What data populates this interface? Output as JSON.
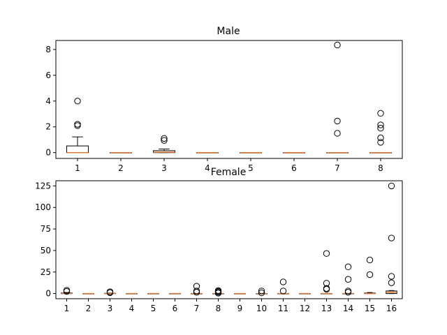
{
  "chart_data": [
    {
      "type": "boxplot",
      "title": "Male",
      "categories": [
        "1",
        "2",
        "3",
        "4",
        "5",
        "6",
        "7",
        "8"
      ],
      "yticks": [
        "0",
        "2",
        "4",
        "6",
        "8"
      ],
      "ylim": [
        -0.45,
        8.7
      ],
      "boxes": [
        {
          "q1": 0,
          "median": 0,
          "q3": 0.52,
          "whislo": 0,
          "whishi": 1.22,
          "fliers": [
            2.1,
            2.2,
            4.0
          ]
        },
        {
          "q1": 0,
          "median": 0,
          "q3": 0,
          "whislo": 0,
          "whishi": 0,
          "fliers": []
        },
        {
          "q1": 0,
          "median": 0.03,
          "q3": 0.15,
          "whislo": 0,
          "whishi": 0.28,
          "fliers": [
            0.95,
            1.1
          ]
        },
        {
          "q1": 0,
          "median": 0,
          "q3": 0,
          "whislo": 0,
          "whishi": 0,
          "fliers": []
        },
        {
          "q1": 0,
          "median": 0,
          "q3": 0,
          "whislo": 0,
          "whishi": 0,
          "fliers": []
        },
        {
          "q1": 0,
          "median": 0,
          "q3": 0,
          "whislo": 0,
          "whishi": 0,
          "fliers": []
        },
        {
          "q1": 0,
          "median": 0,
          "q3": 0,
          "whislo": 0,
          "whishi": 0,
          "fliers": [
            1.5,
            2.45,
            8.35
          ]
        },
        {
          "q1": 0,
          "median": 0,
          "q3": 0,
          "whislo": 0,
          "whishi": 0,
          "fliers": [
            0.8,
            1.15,
            1.9,
            2.15,
            3.05
          ]
        }
      ]
    },
    {
      "type": "boxplot",
      "title": "Female",
      "categories": [
        "1",
        "2",
        "3",
        "4",
        "5",
        "6",
        "7",
        "8",
        "9",
        "10",
        "11",
        "12",
        "13",
        "14",
        "15",
        "16"
      ],
      "yticks": [
        "0",
        "25",
        "50",
        "75",
        "100",
        "125"
      ],
      "ylim": [
        -6,
        131
      ],
      "boxes": [
        {
          "q1": 0,
          "median": 0,
          "q3": 0.6,
          "whislo": 0,
          "whishi": 1.2,
          "fliers": [
            2.5,
            3.8
          ]
        },
        {
          "q1": 0,
          "median": 0,
          "q3": 0,
          "whislo": 0,
          "whishi": 0,
          "fliers": []
        },
        {
          "q1": 0,
          "median": 0,
          "q3": 0.3,
          "whislo": 0,
          "whishi": 0.6,
          "fliers": [
            1.0,
            2.0
          ]
        },
        {
          "q1": 0,
          "median": 0,
          "q3": 0,
          "whislo": 0,
          "whishi": 0,
          "fliers": []
        },
        {
          "q1": 0,
          "median": 0,
          "q3": 0,
          "whislo": 0,
          "whishi": 0,
          "fliers": []
        },
        {
          "q1": 0,
          "median": 0,
          "q3": 0,
          "whislo": 0,
          "whishi": 0,
          "fliers": []
        },
        {
          "q1": 0,
          "median": 0,
          "q3": 0,
          "whislo": 0,
          "whishi": 0,
          "fliers": [
            1.5,
            3.0,
            8.5
          ]
        },
        {
          "q1": 0,
          "median": 0,
          "q3": 0,
          "whislo": 0,
          "whishi": 0,
          "fliers": [
            0.5,
            1.5,
            2.5,
            3.5
          ]
        },
        {
          "q1": 0,
          "median": 0,
          "q3": 0,
          "whislo": 0,
          "whishi": 0,
          "fliers": []
        },
        {
          "q1": 0,
          "median": 0,
          "q3": 0,
          "whislo": 0,
          "whishi": 0,
          "fliers": [
            0.8,
            3.0
          ]
        },
        {
          "q1": 0,
          "median": 0,
          "q3": 0,
          "whislo": 0,
          "whishi": 0,
          "fliers": [
            3.0,
            13.5
          ]
        },
        {
          "q1": 0,
          "median": 0,
          "q3": 0,
          "whislo": 0,
          "whishi": 0,
          "fliers": []
        },
        {
          "q1": 0,
          "median": 0,
          "q3": 0,
          "whislo": 0,
          "whishi": 0,
          "fliers": [
            5.0,
            6.0,
            12.0,
            46.5
          ]
        },
        {
          "q1": 0,
          "median": 0,
          "q3": 0,
          "whislo": 0,
          "whishi": 0,
          "fliers": [
            1.5,
            3.0,
            16.5,
            31.0
          ]
        },
        {
          "q1": 0,
          "median": 0,
          "q3": 0.6,
          "whislo": 0,
          "whishi": 1.2,
          "fliers": [
            22.0,
            39.0
          ]
        },
        {
          "q1": 0,
          "median": 1.5,
          "q3": 3.0,
          "whislo": 0,
          "whishi": 3.5,
          "fliers": [
            12.5,
            20.0,
            64.5,
            125.0
          ]
        }
      ]
    }
  ]
}
